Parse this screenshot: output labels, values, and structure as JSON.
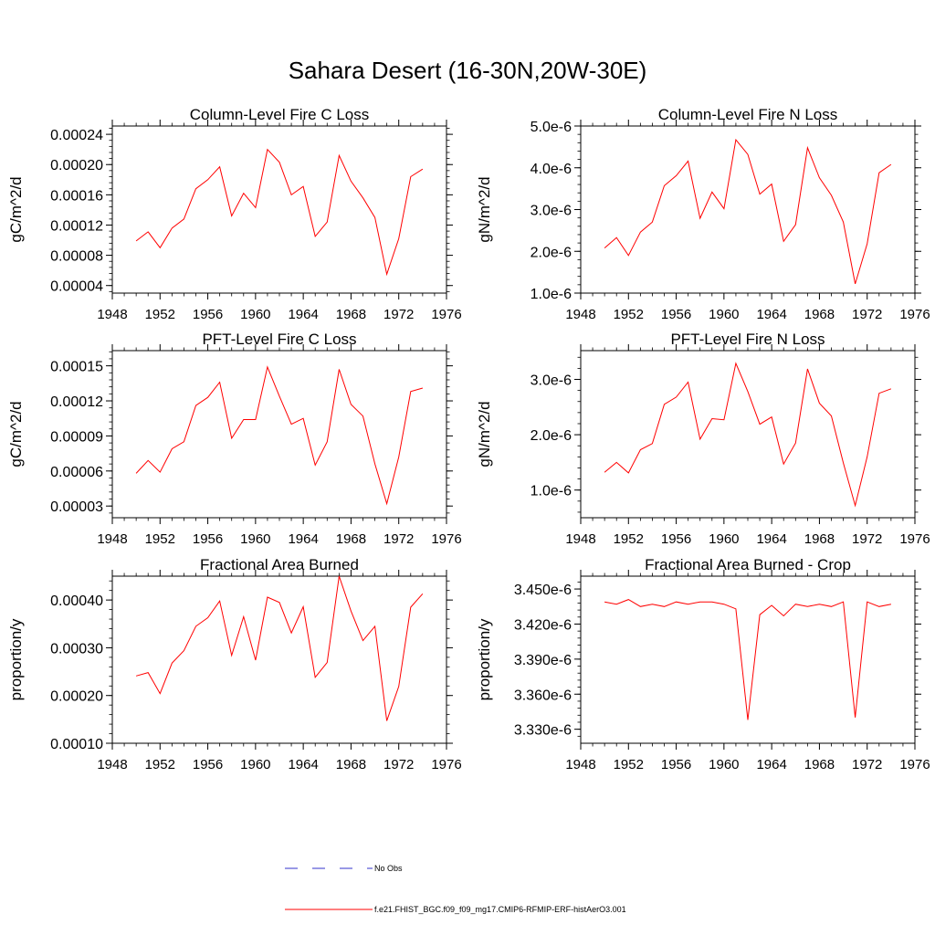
{
  "figure": {
    "title": "Sahara Desert (16-30N,20W-30E)"
  },
  "legend": [
    {
      "label": "No Obs",
      "color": "#3333cc",
      "style": "dashed"
    },
    {
      "label": "f.e21.FHIST_BGC.f09_f09_mg17.CMIP6-RFMIP-ERF-histAerO3.001",
      "color": "#ff0000",
      "style": "solid"
    }
  ],
  "chart_data": [
    {
      "type": "line",
      "title": "Column-Level Fire C Loss",
      "xlabel": "",
      "ylabel": "gC/m^2/d",
      "xlim": [
        1948,
        1976
      ],
      "ylim": [
        3e-05,
        0.000251
      ],
      "xticks": [
        1948,
        1952,
        1956,
        1960,
        1964,
        1968,
        1972,
        1976
      ],
      "yticks": [
        4e-05,
        8e-05,
        0.00012,
        0.00016,
        0.0002,
        0.00024
      ],
      "ytick_labels": [
        "0.00004",
        "0.00008",
        "0.00012",
        "0.00016",
        "0.00020",
        "0.00024"
      ],
      "x": [
        1950,
        1951,
        1952,
        1953,
        1954,
        1955,
        1956,
        1957,
        1958,
        1959,
        1960,
        1961,
        1962,
        1963,
        1964,
        1965,
        1966,
        1967,
        1968,
        1969,
        1970,
        1971,
        1972,
        1973,
        1974
      ],
      "series": [
        {
          "color": "#ff0000",
          "values": [
            9.9e-05,
            0.000111,
            9e-05,
            0.000116,
            0.000128,
            0.000168,
            0.00018,
            0.000197,
            0.000132,
            0.000162,
            0.000143,
            0.00022,
            0.000203,
            0.00016,
            0.000171,
            0.000105,
            0.000124,
            0.000212,
            0.000178,
            0.000156,
            0.00013,
            5.5e-05,
            0.000102,
            0.000184,
            0.000194
          ]
        }
      ]
    },
    {
      "type": "line",
      "title": "Column-Level Fire N Loss",
      "xlabel": "",
      "ylabel": "gN/m^2/d",
      "xlim": [
        1948,
        1976
      ],
      "ylim": [
        1e-06,
        5e-06
      ],
      "xticks": [
        1948,
        1952,
        1956,
        1960,
        1964,
        1968,
        1972,
        1976
      ],
      "yticks": [
        1e-06,
        2e-06,
        3e-06,
        4e-06,
        5e-06
      ],
      "ytick_labels": [
        "1.0e-6",
        "2.0e-6",
        "3.0e-6",
        "4.0e-6",
        "5.0e-6"
      ],
      "x": [
        1950,
        1951,
        1952,
        1953,
        1954,
        1955,
        1956,
        1957,
        1958,
        1959,
        1960,
        1961,
        1962,
        1963,
        1964,
        1965,
        1966,
        1967,
        1968,
        1969,
        1970,
        1971,
        1972,
        1973,
        1974
      ],
      "series": [
        {
          "color": "#ff0000",
          "values": [
            2.08e-06,
            2.33e-06,
            1.9e-06,
            2.46e-06,
            2.7e-06,
            3.57e-06,
            3.81e-06,
            4.16e-06,
            2.79e-06,
            3.42e-06,
            3.02e-06,
            4.67e-06,
            4.32e-06,
            3.37e-06,
            3.61e-06,
            2.24e-06,
            2.64e-06,
            4.48e-06,
            3.76e-06,
            3.34e-06,
            2.7e-06,
            1.22e-06,
            2.18e-06,
            3.88e-06,
            4.08e-06
          ]
        }
      ]
    },
    {
      "type": "line",
      "title": "PFT-Level Fire C Loss",
      "xlabel": "",
      "ylabel": "gC/m^2/d",
      "xlim": [
        1948,
        1976
      ],
      "ylim": [
        2e-05,
        0.000163
      ],
      "xticks": [
        1948,
        1952,
        1956,
        1960,
        1964,
        1968,
        1972,
        1976
      ],
      "yticks": [
        3e-05,
        6e-05,
        9e-05,
        0.00012,
        0.00015
      ],
      "ytick_labels": [
        "0.00003",
        "0.00006",
        "0.00009",
        "0.00012",
        "0.00015"
      ],
      "x": [
        1950,
        1951,
        1952,
        1953,
        1954,
        1955,
        1956,
        1957,
        1958,
        1959,
        1960,
        1961,
        1962,
        1963,
        1964,
        1965,
        1966,
        1967,
        1968,
        1969,
        1970,
        1971,
        1972,
        1973,
        1974
      ],
      "series": [
        {
          "color": "#ff0000",
          "values": [
            5.8e-05,
            6.9e-05,
            5.9e-05,
            7.9e-05,
            8.5e-05,
            0.000116,
            0.000123,
            0.000136,
            8.8e-05,
            0.000104,
            0.000104,
            0.000149,
            0.000124,
            0.0001,
            0.000105,
            6.5e-05,
            8.5e-05,
            0.000147,
            0.000117,
            0.000107,
            6.6e-05,
            3.2e-05,
            7.2e-05,
            0.000128,
            0.000131
          ]
        }
      ]
    },
    {
      "type": "line",
      "title": "PFT-Level Fire N Loss",
      "xlabel": "",
      "ylabel": "gN/m^2/d",
      "xlim": [
        1948,
        1976
      ],
      "ylim": [
        5e-07,
        3.52e-06
      ],
      "xticks": [
        1948,
        1952,
        1956,
        1960,
        1964,
        1968,
        1972,
        1976
      ],
      "yticks": [
        1e-06,
        2e-06,
        3e-06
      ],
      "ytick_labels": [
        "1.0e-6",
        "2.0e-6",
        "3.0e-6"
      ],
      "x": [
        1950,
        1951,
        1952,
        1953,
        1954,
        1955,
        1956,
        1957,
        1958,
        1959,
        1960,
        1961,
        1962,
        1963,
        1964,
        1965,
        1966,
        1967,
        1968,
        1969,
        1970,
        1971,
        1972,
        1973,
        1974
      ],
      "series": [
        {
          "color": "#ff0000",
          "values": [
            1.32e-06,
            1.5e-06,
            1.31e-06,
            1.73e-06,
            1.84e-06,
            2.55e-06,
            2.68e-06,
            2.95e-06,
            1.92e-06,
            2.29e-06,
            2.27e-06,
            3.29e-06,
            2.78e-06,
            2.19e-06,
            2.32e-06,
            1.47e-06,
            1.85e-06,
            3.19e-06,
            2.57e-06,
            2.34e-06,
            1.49e-06,
            7.2e-07,
            1.6e-06,
            2.75e-06,
            2.83e-06
          ]
        }
      ]
    },
    {
      "type": "line",
      "title": "Fractional Area Burned",
      "xlabel": "",
      "ylabel": "proportion/y",
      "xlim": [
        1948,
        1976
      ],
      "ylim": [
        0.0001,
        0.00045
      ],
      "xticks": [
        1948,
        1952,
        1956,
        1960,
        1964,
        1968,
        1972,
        1976
      ],
      "yticks": [
        0.0001,
        0.0002,
        0.0003,
        0.0004
      ],
      "ytick_labels": [
        "0.00010",
        "0.00020",
        "0.00030",
        "0.00040"
      ],
      "x": [
        1950,
        1951,
        1952,
        1953,
        1954,
        1955,
        1956,
        1957,
        1958,
        1959,
        1960,
        1961,
        1962,
        1963,
        1964,
        1965,
        1966,
        1967,
        1968,
        1969,
        1970,
        1971,
        1972,
        1973,
        1974
      ],
      "series": [
        {
          "color": "#ff0000",
          "values": [
            0.000241,
            0.000248,
            0.000204,
            0.000268,
            0.000294,
            0.000345,
            0.000363,
            0.000398,
            0.000284,
            0.000365,
            0.000274,
            0.000406,
            0.000395,
            0.000331,
            0.000386,
            0.000238,
            0.000269,
            0.00045,
            0.000377,
            0.000315,
            0.000345,
            0.000147,
            0.000219,
            0.000385,
            0.000413
          ]
        }
      ]
    },
    {
      "type": "line",
      "title": "Fractional Area Burned - Crop",
      "xlabel": "",
      "ylabel": "proportion/y",
      "xlim": [
        1948,
        1976
      ],
      "ylim": [
        3.318e-06,
        3.461e-06
      ],
      "xticks": [
        1948,
        1952,
        1956,
        1960,
        1964,
        1968,
        1972,
        1976
      ],
      "yticks": [
        3.33e-06,
        3.36e-06,
        3.39e-06,
        3.42e-06,
        3.45e-06
      ],
      "ytick_labels": [
        "3.330e-6",
        "3.360e-6",
        "3.390e-6",
        "3.420e-6",
        "3.450e-6"
      ],
      "x": [
        1950,
        1951,
        1952,
        1953,
        1954,
        1955,
        1956,
        1957,
        1958,
        1959,
        1960,
        1961,
        1962,
        1963,
        1964,
        1965,
        1966,
        1967,
        1968,
        1969,
        1970,
        1971,
        1972,
        1973,
        1974
      ],
      "series": [
        {
          "color": "#ff0000",
          "values": [
            3.439e-06,
            3.437e-06,
            3.441e-06,
            3.435e-06,
            3.437e-06,
            3.435e-06,
            3.439e-06,
            3.437e-06,
            3.439e-06,
            3.439e-06,
            3.437e-06,
            3.433e-06,
            3.338e-06,
            3.428e-06,
            3.436e-06,
            3.427e-06,
            3.437e-06,
            3.435e-06,
            3.437e-06,
            3.435e-06,
            3.439e-06,
            3.34e-06,
            3.439e-06,
            3.435e-06,
            3.437e-06
          ]
        }
      ]
    }
  ]
}
